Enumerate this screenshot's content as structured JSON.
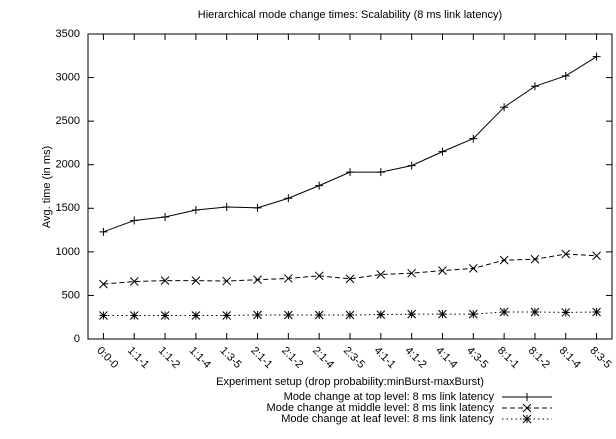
{
  "chart_data": {
    "type": "line",
    "title": "Hierarchical mode change times: Scalability (8 ms link latency)",
    "x_label": "Experiment setup (drop probability:minBurst-maxBurst)",
    "y_label": "Avg. time (in ms)",
    "categories": [
      "0:0-0",
      "1:1-1",
      "1:1-2",
      "1:1-4",
      "1:3-5",
      "2:1-1",
      "2:1-2",
      "2:1-4",
      "2:3-5",
      "4:1-1",
      "4:1-2",
      "4:1-4",
      "4:3-5",
      "8:1-1",
      "8:1-2",
      "8:1-4",
      "8:3-5"
    ],
    "ylim": [
      0,
      3500
    ],
    "yticks": [
      0,
      500,
      1000,
      1500,
      2000,
      2500,
      3000,
      3500
    ],
    "grid": false,
    "legend_position": "bottom-right",
    "series": [
      {
        "name": "Mode change at top level: 8 ms link latency",
        "color": "#000000",
        "line_style": "solid",
        "marker": "+",
        "values": [
          1230,
          1360,
          1400,
          1480,
          1515,
          1505,
          1615,
          1760,
          1915,
          1915,
          1990,
          2150,
          2300,
          2660,
          2900,
          3020,
          3240
        ]
      },
      {
        "name": "Mode change at middle level: 8 ms link latency",
        "color": "#000000",
        "line_style": "dashed",
        "marker": "x",
        "values": [
          630,
          660,
          670,
          670,
          665,
          680,
          695,
          725,
          690,
          740,
          755,
          785,
          810,
          905,
          915,
          975,
          955
        ]
      },
      {
        "name": "Mode change at leaf level: 8 ms link latency",
        "color": "#000000",
        "line_style": "dotted",
        "marker": "*",
        "values": [
          270,
          270,
          270,
          270,
          270,
          275,
          275,
          275,
          275,
          280,
          285,
          285,
          285,
          310,
          310,
          305,
          310
        ]
      }
    ]
  }
}
